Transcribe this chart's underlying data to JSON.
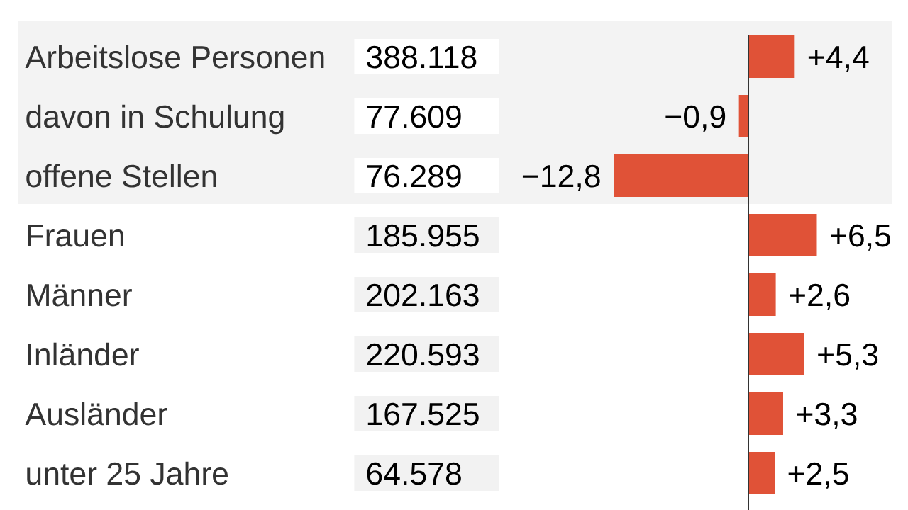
{
  "chart_data": {
    "type": "bar",
    "orientation": "horizontal",
    "categories": [
      "Arbeitslose Personen",
      "davon in Schulung",
      "offene Stellen",
      "Frauen",
      "Männer",
      "Inländer",
      "Ausländer",
      "unter 25 Jahre"
    ],
    "values": [
      4.4,
      -0.9,
      -12.8,
      6.5,
      2.6,
      5.3,
      3.3,
      2.5
    ],
    "color": "#e05237",
    "value_labels": [
      "+4,4",
      "−0,9",
      "−12,8",
      "+6,5",
      "+2,6",
      "+5,3",
      "+3,3",
      "+2,5"
    ],
    "annotations": [
      "388.118",
      "77.609",
      "76.289",
      "185.955",
      "202.163",
      "220.593",
      "167.525",
      "64.578"
    ],
    "bands": [
      {
        "axis": "y",
        "from": "Arbeitslose Personen",
        "to": "offene Stellen",
        "color": "#f3f3f3"
      }
    ],
    "tick_labels": "y"
  }
}
